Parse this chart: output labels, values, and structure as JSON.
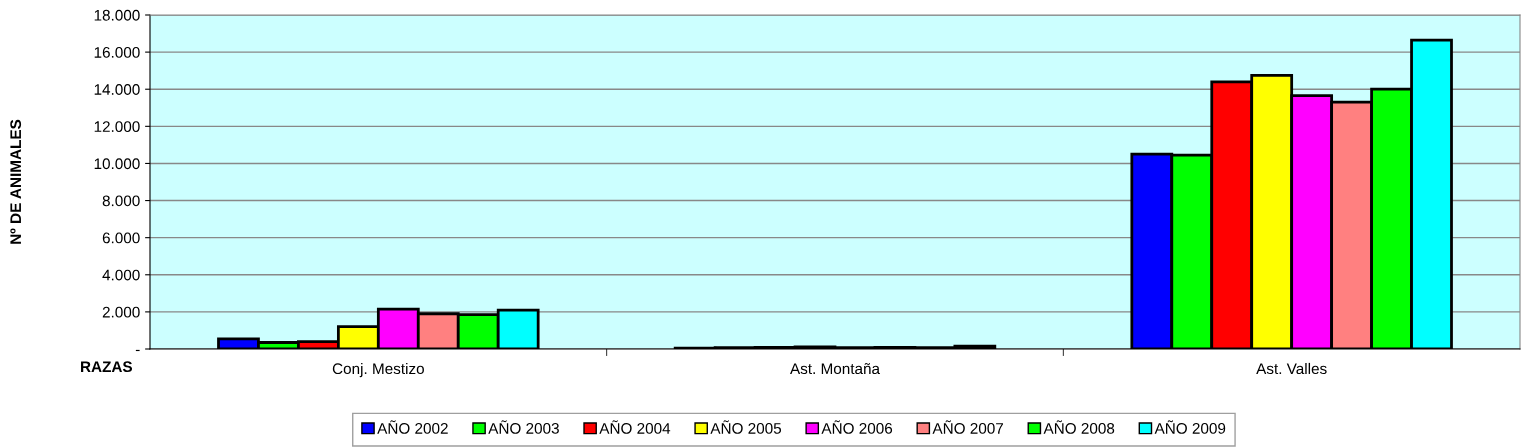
{
  "chart_data": {
    "type": "bar",
    "ylabel": "Nº DE ANIMALES",
    "annotations": [
      "RAZAS"
    ],
    "categories": [
      "Conj. Mestizo",
      "Ast. Montaña",
      "Ast. Valles"
    ],
    "series": [
      {
        "name": "AÑO 2002",
        "color": "#0000ff",
        "values": [
          550,
          50,
          10500
        ]
      },
      {
        "name": "AÑO 2003",
        "color": "#00ff00",
        "values": [
          350,
          70,
          10450
        ]
      },
      {
        "name": "AÑO 2004",
        "color": "#ff0000",
        "values": [
          400,
          90,
          14400
        ]
      },
      {
        "name": "AÑO 2005",
        "color": "#ffff00",
        "values": [
          1200,
          110,
          14750
        ]
      },
      {
        "name": "AÑO 2006",
        "color": "#ff00ff",
        "values": [
          2150,
          70,
          13650
        ]
      },
      {
        "name": "AÑO 2007",
        "color": "#ff8080",
        "values": [
          1900,
          90,
          13300
        ]
      },
      {
        "name": "AÑO 2008",
        "color": "#00ff00",
        "values": [
          1850,
          80,
          14000
        ]
      },
      {
        "name": "AÑO 2009",
        "color": "#00ffff",
        "values": [
          2100,
          150,
          16650
        ]
      }
    ],
    "ylim": [
      0,
      18000
    ],
    "yticks": [
      {
        "value": 0,
        "label": "-"
      },
      {
        "value": 2000,
        "label": "2.000"
      },
      {
        "value": 4000,
        "label": "4.000"
      },
      {
        "value": 6000,
        "label": "6.000"
      },
      {
        "value": 8000,
        "label": "8.000"
      },
      {
        "value": 10000,
        "label": "10.000"
      },
      {
        "value": 12000,
        "label": "12.000"
      },
      {
        "value": 14000,
        "label": "14.000"
      },
      {
        "value": 16000,
        "label": "16.000"
      },
      {
        "value": 18000,
        "label": "18.000"
      }
    ],
    "grid": "y",
    "legend": "bottom"
  }
}
